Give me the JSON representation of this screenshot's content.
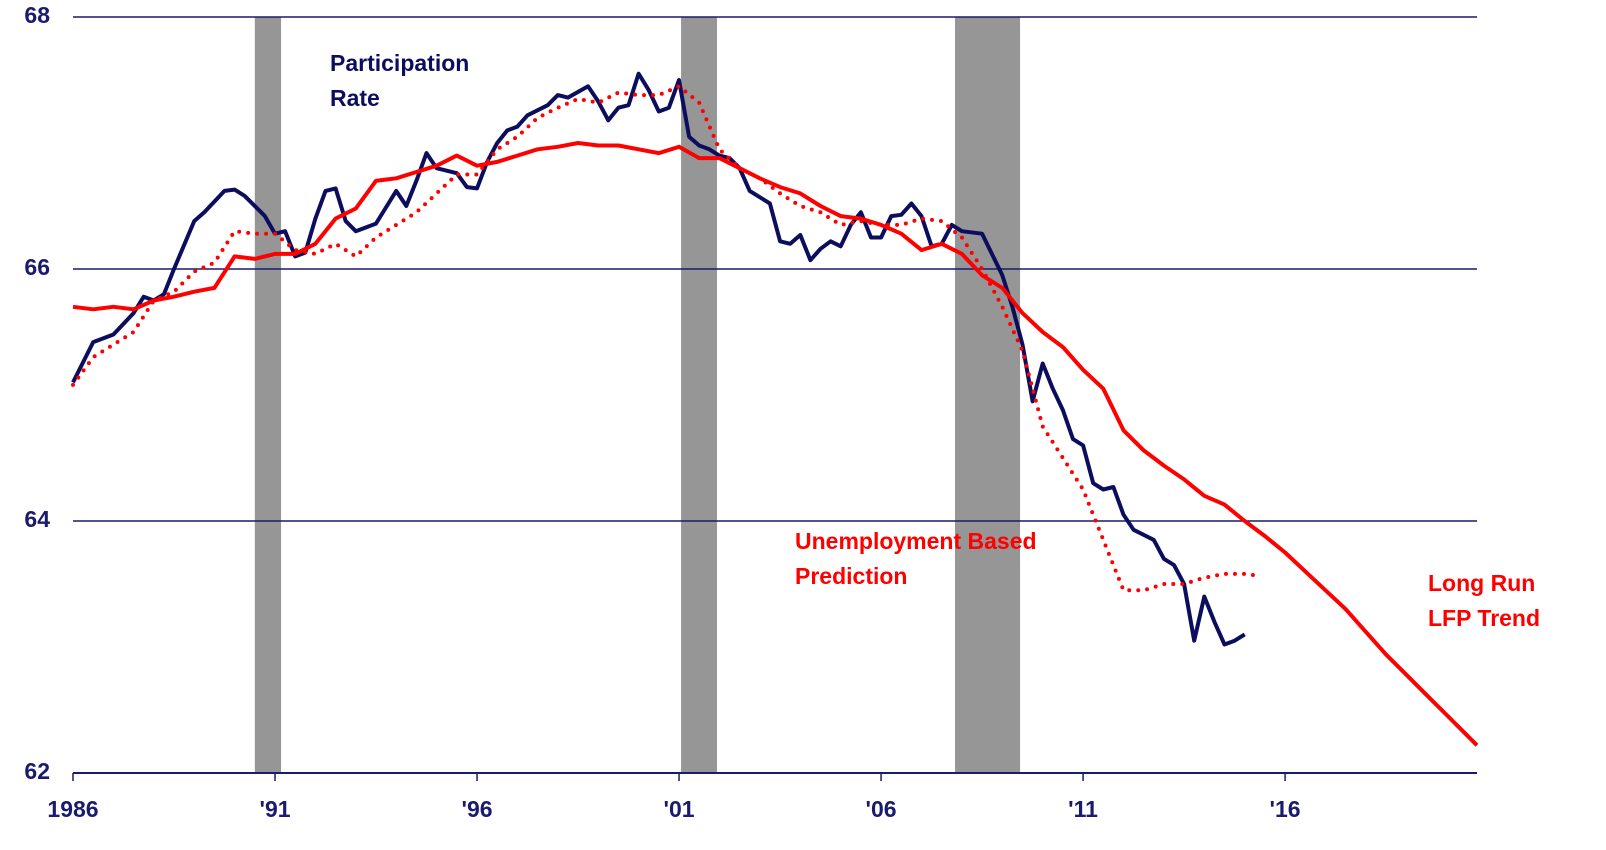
{
  "chart_data": {
    "type": "line",
    "xlim": [
      1986,
      2020.75
    ],
    "ylim": [
      62,
      68
    ],
    "yticks": [
      62,
      64,
      66,
      68
    ],
    "xticks": [
      1986,
      {
        "value": 1991,
        "label": "'91"
      },
      {
        "value": 1996,
        "label": "'96"
      },
      {
        "value": 2001,
        "label": "'01"
      },
      {
        "value": 2006,
        "label": "'06"
      },
      {
        "value": 2011,
        "label": "'11"
      },
      {
        "value": 2016,
        "label": "'16"
      }
    ],
    "grid": true,
    "recessions": [
      [
        1990.5,
        1991.15
      ],
      [
        2001.05,
        2001.94
      ],
      [
        2007.83,
        2009.44
      ]
    ],
    "recession_color": "#969696",
    "series": [
      {
        "name": [
          "Participation",
          "Rate"
        ],
        "color": "#0d0d5e",
        "line_style": "solid",
        "x": [
          1986,
          1986.5,
          1987,
          1987.5,
          1987.75,
          1988,
          1988.25,
          1988.5,
          1989,
          1989.25,
          1989.75,
          1990,
          1990.25,
          1990.75,
          1991,
          1991.25,
          1991.5,
          1991.75,
          1992,
          1992.25,
          1992.5,
          1992.75,
          1993,
          1993.5,
          1994,
          1994.25,
          1994.5,
          1994.75,
          1995,
          1995.5,
          1995.75,
          1996,
          1996.25,
          1996.5,
          1996.75,
          1997,
          1997.25,
          1997.75,
          1998,
          1998.25,
          1998.75,
          1999,
          1999.25,
          1999.5,
          1999.75,
          2000,
          2000.25,
          2000.5,
          2000.75,
          2001,
          2001.25,
          2001.5,
          2001.75,
          2002,
          2002.25,
          2002.5,
          2002.75,
          2003,
          2003.25,
          2003.5,
          2003.75,
          2004,
          2004.25,
          2004.5,
          2004.75,
          2005,
          2005.25,
          2005.5,
          2005.75,
          2006,
          2006.25,
          2006.5,
          2006.75,
          2007,
          2007.25,
          2007.5,
          2007.75,
          2008,
          2008.5,
          2009,
          2009.25,
          2009.5,
          2009.75,
          2010,
          2010.25,
          2010.5,
          2010.75,
          2011,
          2011.25,
          2011.5,
          2011.75,
          2012,
          2012.25,
          2012.75,
          2013,
          2013.25,
          2013.5,
          2013.75,
          2014,
          2014.25,
          2014.5,
          2014.75,
          2015
        ],
        "values": [
          65.1,
          65.42,
          65.48,
          65.65,
          65.78,
          65.75,
          65.8,
          66.0,
          66.38,
          66.45,
          66.62,
          66.63,
          66.58,
          66.42,
          66.28,
          66.3,
          66.1,
          66.13,
          66.4,
          66.62,
          66.64,
          66.38,
          66.3,
          66.36,
          66.62,
          66.5,
          66.7,
          66.92,
          66.8,
          66.76,
          66.65,
          66.64,
          66.85,
          67.0,
          67.1,
          67.13,
          67.22,
          67.3,
          67.38,
          67.36,
          67.45,
          67.33,
          67.18,
          67.28,
          67.3,
          67.55,
          67.42,
          67.25,
          67.28,
          67.5,
          67.05,
          66.98,
          66.95,
          66.9,
          66.88,
          66.8,
          66.62,
          66.57,
          66.52,
          66.22,
          66.2,
          66.27,
          66.07,
          66.16,
          66.22,
          66.18,
          66.35,
          66.45,
          66.25,
          66.25,
          66.42,
          66.43,
          66.52,
          66.42,
          66.18,
          66.2,
          66.35,
          66.3,
          66.28,
          65.95,
          65.7,
          65.4,
          64.95,
          65.25,
          65.05,
          64.88,
          64.65,
          64.6,
          64.3,
          64.25,
          64.27,
          64.05,
          63.93,
          63.85,
          63.7,
          63.65,
          63.5,
          63.05,
          63.4,
          63.2,
          63.02,
          63.05,
          63.1
        ]
      },
      {
        "name": [
          "Unemployment Based",
          "Prediction"
        ],
        "color": "#ff0000",
        "line_style": "dotted",
        "x": [
          1986,
          1986.5,
          1987,
          1987.5,
          1988,
          1988.5,
          1989,
          1989.5,
          1990,
          1990.5,
          1991,
          1991.5,
          1992,
          1992.5,
          1993,
          1993.5,
          1994,
          1994.5,
          1995,
          1995.5,
          1996,
          1996.5,
          1997,
          1997.5,
          1998,
          1998.5,
          1999,
          1999.5,
          2000,
          2000.5,
          2001,
          2001.5,
          2002,
          2002.5,
          2003,
          2003.5,
          2004,
          2004.5,
          2005,
          2005.5,
          2006,
          2006.5,
          2007,
          2007.5,
          2008,
          2008.5,
          2009,
          2009.5,
          2010,
          2010.5,
          2011,
          2011.5,
          2012,
          2012.5,
          2013,
          2013.5,
          2014,
          2014.5,
          2015,
          2015.25
        ],
        "values": [
          65.08,
          65.3,
          65.4,
          65.5,
          65.75,
          65.82,
          65.98,
          66.05,
          66.3,
          66.28,
          66.28,
          66.15,
          66.12,
          66.2,
          66.1,
          66.25,
          66.35,
          66.45,
          66.6,
          66.75,
          66.75,
          66.95,
          67.05,
          67.2,
          67.28,
          67.35,
          67.32,
          67.4,
          67.38,
          67.38,
          67.45,
          67.32,
          66.95,
          66.8,
          66.72,
          66.6,
          66.5,
          66.45,
          66.35,
          66.38,
          66.35,
          66.35,
          66.4,
          66.38,
          66.25,
          66.0,
          65.7,
          65.35,
          64.75,
          64.5,
          64.25,
          63.85,
          63.45,
          63.45,
          63.5,
          63.5,
          63.55,
          63.58,
          63.58,
          63.57
        ]
      },
      {
        "name": [
          "Long Run",
          "LFP Trend"
        ],
        "color": "#ff0000",
        "line_style": "solid",
        "x": [
          1986,
          1986.5,
          1987,
          1987.5,
          1988,
          1988.5,
          1989,
          1989.5,
          1990,
          1990.5,
          1991,
          1991.5,
          1992,
          1992.5,
          1993,
          1993.5,
          1994,
          1994.5,
          1995,
          1995.5,
          1996,
          1996.5,
          1997,
          1997.5,
          1998,
          1998.5,
          1999,
          1999.5,
          2000,
          2000.5,
          2001,
          2001.5,
          2002,
          2002.5,
          2003,
          2003.5,
          2004,
          2004.5,
          2005,
          2005.5,
          2006,
          2006.5,
          2007,
          2007.5,
          2008,
          2008.5,
          2009,
          2009.5,
          2010,
          2010.5,
          2011,
          2011.5,
          2012,
          2012.5,
          2013,
          2013.5,
          2014,
          2014.5,
          2015,
          2015.5,
          2016,
          2016.5,
          2017,
          2017.5,
          2018,
          2018.5,
          2019,
          2019.5,
          2020,
          2020.75
        ],
        "values": [
          65.7,
          65.68,
          65.7,
          65.68,
          65.75,
          65.78,
          65.82,
          65.85,
          66.1,
          66.08,
          66.12,
          66.12,
          66.2,
          66.4,
          66.48,
          66.7,
          66.72,
          66.77,
          66.82,
          66.9,
          66.82,
          66.85,
          66.9,
          66.95,
          66.97,
          67.0,
          66.98,
          66.98,
          66.95,
          66.92,
          66.97,
          66.88,
          66.88,
          66.8,
          66.72,
          66.65,
          66.6,
          66.5,
          66.42,
          66.4,
          66.35,
          66.28,
          66.15,
          66.2,
          66.12,
          65.95,
          65.85,
          65.65,
          65.5,
          65.38,
          65.2,
          65.05,
          64.72,
          64.56,
          64.44,
          64.33,
          64.2,
          64.13,
          64.0,
          63.88,
          63.75,
          63.6,
          63.45,
          63.3,
          63.12,
          62.94,
          62.78,
          62.62,
          62.46,
          62.22
        ]
      }
    ]
  }
}
